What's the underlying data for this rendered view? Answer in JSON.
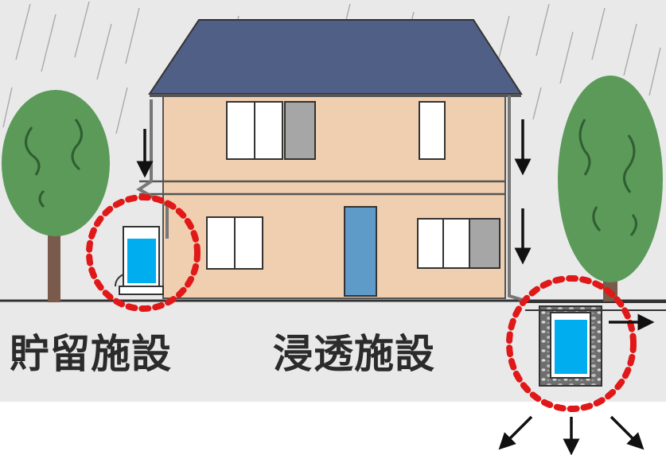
{
  "labels": {
    "storage_facility": "貯留施設",
    "infiltration_facility": "浸透施設"
  },
  "colors": {
    "sky": "#e9e9ea",
    "roof": "#4f5f86",
    "wall": "#f0ceb0",
    "tree": "#5b9a58",
    "trunk": "#7a5a4a",
    "water": "#00aef0",
    "highlight": "#e01818",
    "door": "#5f9bc8",
    "window_shade": "#a6a6a6",
    "arrow": "#111111"
  },
  "icons": [
    "rain-lines",
    "down-arrow",
    "right-arrow",
    "seepage-arrow",
    "tree",
    "house",
    "storage-tank",
    "infiltration-pit"
  ]
}
